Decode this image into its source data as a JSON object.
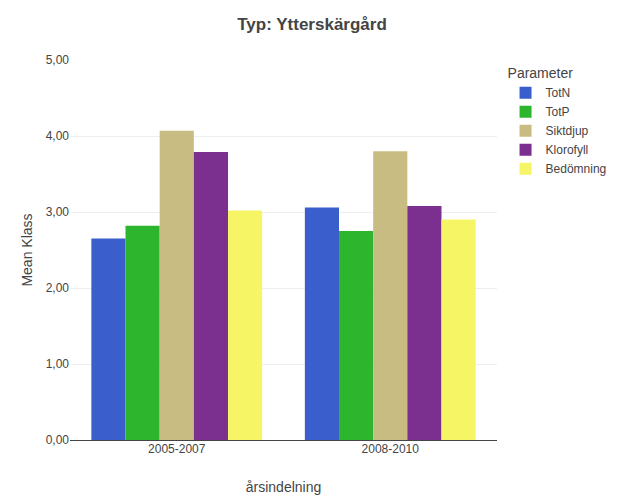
{
  "chart_data": {
    "type": "bar",
    "title": "Typ: Ytterskärgård",
    "xlabel": "årsindelning",
    "ylabel": "Mean Klass",
    "categories": [
      "2005-2007",
      "2008-2010"
    ],
    "series": [
      {
        "name": "TotN",
        "color": "#3a5fcd",
        "values": [
          2.65,
          3.06
        ]
      },
      {
        "name": "TotP",
        "color": "#2db52d",
        "values": [
          2.82,
          2.75
        ]
      },
      {
        "name": "Siktdjup",
        "color": "#c8bc82",
        "values": [
          4.07,
          3.8
        ]
      },
      {
        "name": "Klorofyll",
        "color": "#7b2f8e",
        "values": [
          3.79,
          3.08
        ]
      },
      {
        "name": "Bedömning",
        "color": "#f5f566",
        "values": [
          3.02,
          2.9
        ]
      }
    ],
    "legend_title": "Parameter",
    "legend": "upper right",
    "ylim": [
      0,
      5.0
    ],
    "yticks": [
      {
        "value": 0.0,
        "label": "0,00"
      },
      {
        "value": 1.0,
        "label": "1,00"
      },
      {
        "value": 2.0,
        "label": "2,00"
      },
      {
        "value": 3.0,
        "label": "3,00"
      },
      {
        "value": 4.0,
        "label": "4,00"
      },
      {
        "value": 5.0,
        "label": "5,00"
      }
    ],
    "grid": true
  }
}
